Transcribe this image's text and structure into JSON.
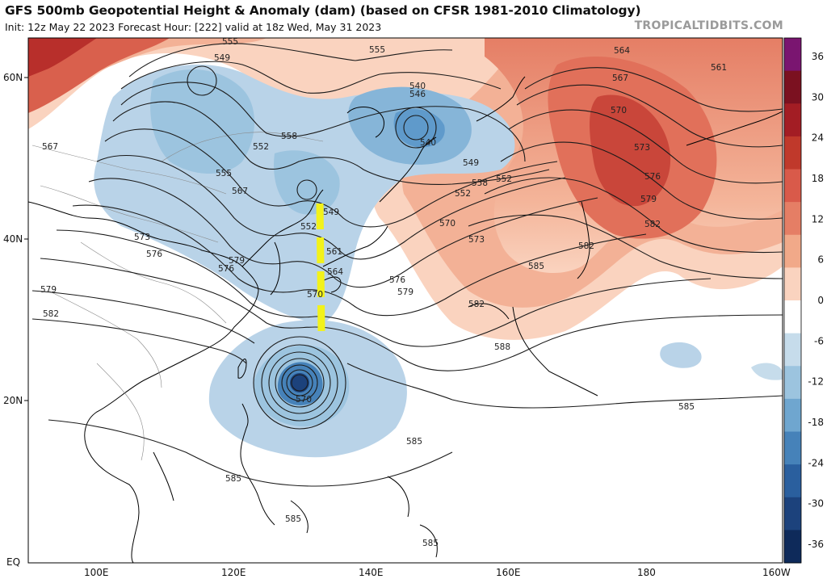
{
  "header": {
    "title": "GFS 500mb Geopotential Height & Anomaly (dam) (based on CFSR 1981-2010 Climatology)",
    "subtitle": "Init: 12z May 22 2023   Forecast Hour: [222]   valid at 18z Wed, May 31 2023",
    "credit": "TROPICALTIDBITS.COM"
  },
  "axes": {
    "lat_labels": [
      "60N",
      "40N",
      "20N",
      "EQ"
    ],
    "lon_labels": [
      "100E",
      "120E",
      "140E",
      "160E",
      "180",
      "160W"
    ]
  },
  "colorbar": {
    "labels": [
      "36",
      "30",
      "24",
      "18",
      "12",
      "6",
      "0",
      "-6",
      "-12",
      "-18",
      "-24",
      "-30",
      "-36"
    ],
    "colors": [
      "#7a1570",
      "#7b1120",
      "#a31d24",
      "#c0392b",
      "#d95a4a",
      "#e57e65",
      "#f1a989",
      "#fad3bf",
      "#ffffff",
      "#c6dceb",
      "#9cc4df",
      "#6fa6cf",
      "#4682b9",
      "#2a5f9e",
      "#1c427c",
      "#0e2a5a"
    ]
  },
  "contour_labels": [
    "555",
    "549",
    "555",
    "564",
    "561",
    "567",
    "570",
    "573",
    "576",
    "579",
    "582",
    "546",
    "540",
    "540",
    "549",
    "552",
    "552",
    "558",
    "555",
    "552",
    "558",
    "567",
    "570",
    "573",
    "576",
    "579",
    "582",
    "585",
    "588",
    "585",
    "570",
    "576",
    "579",
    "582",
    "585",
    "585",
    "585",
    "585",
    "570",
    "573",
    "576",
    "579",
    "582",
    "549",
    "552",
    "561",
    "564",
    "567"
  ],
  "annotation": {
    "color": "#f2f21a",
    "style": "dashed vertical line"
  },
  "colors": {
    "contour": "#1a1a1a",
    "coastline": "#000000",
    "warm_anomaly": "#d95a4a",
    "cold_anomaly": "#7fb0d6"
  }
}
